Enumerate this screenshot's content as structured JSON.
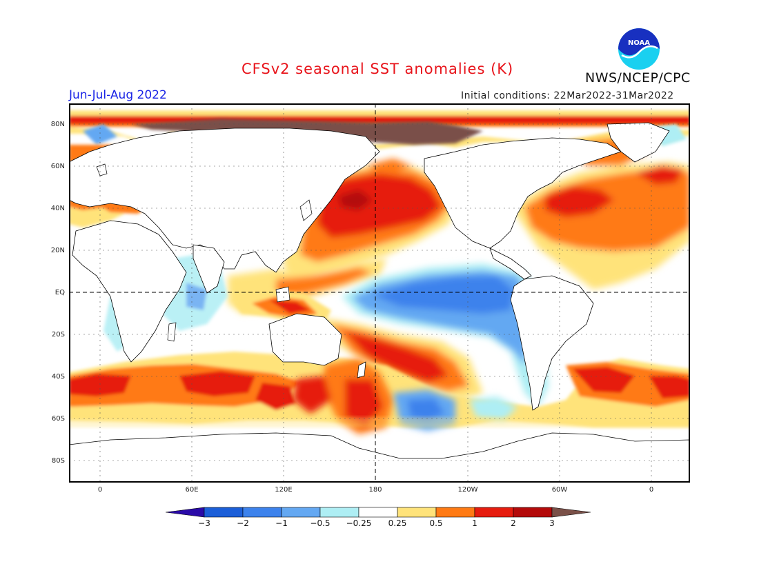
{
  "header": {
    "title": "CFSv2 seasonal SST anomalies (K)",
    "season": "Jun-Jul-Aug 2022",
    "initial_conditions": "Initial conditions: 22Mar2022-31Mar2022",
    "agency": "NWS/NCEP/CPC",
    "logo_text": "NOAA"
  },
  "map": {
    "lat_labels": [
      "80N",
      "60N",
      "40N",
      "20N",
      "EQ",
      "20S",
      "40S",
      "60S",
      "80S"
    ],
    "lon_labels": [
      "0",
      "60E",
      "120E",
      "180",
      "120W",
      "60W",
      "0"
    ]
  },
  "colorbar": {
    "ticks": [
      "-3",
      "-2",
      "-1",
      "-0.5",
      "-0.25",
      "0.25",
      "0.5",
      "1",
      "2",
      "3"
    ],
    "colors": [
      "#2a0aa8",
      "#1b5ed8",
      "#3c82ec",
      "#64a8f2",
      "#aeeef4",
      "#ffffff",
      "#ffe37a",
      "#ff7a14",
      "#e61c0e",
      "#b40a0a",
      "#7a5048"
    ]
  }
}
